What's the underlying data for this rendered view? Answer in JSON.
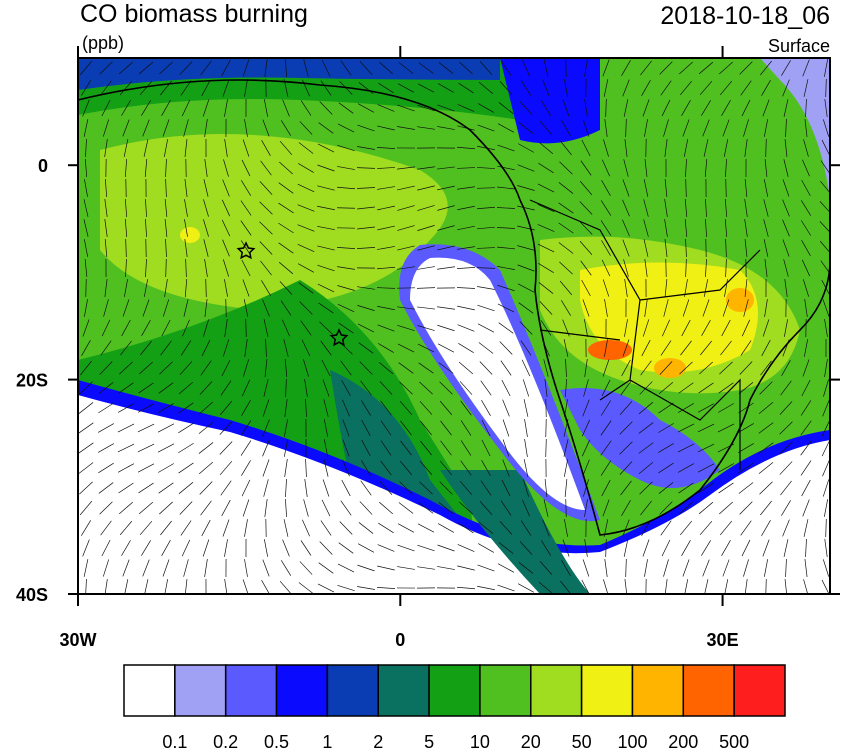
{
  "title": "CO biomass burning",
  "units": "(ppb)",
  "date": "2018-10-18_06",
  "level": "Surface",
  "map": {
    "lon_range": [
      -30,
      40
    ],
    "lat_range": [
      -40,
      10
    ],
    "lat_ticks": [
      {
        "value": 0,
        "label": "0"
      },
      {
        "value": -20,
        "label": "20S"
      },
      {
        "value": -40,
        "label": "40S"
      }
    ],
    "lon_ticks": [
      {
        "value": -30,
        "label": "30W"
      },
      {
        "value": 0,
        "label": "0"
      },
      {
        "value": 30,
        "label": "30E"
      }
    ]
  },
  "colorbar": {
    "levels": [
      0.1,
      0.2,
      0.5,
      1,
      2,
      5,
      10,
      20,
      50,
      100,
      200,
      500
    ],
    "colors": [
      "#ffffff",
      "#a0a0f5",
      "#5a5aff",
      "#0a0aff",
      "#0a3cb4",
      "#0a7060",
      "#14a014",
      "#50c020",
      "#a0dc20",
      "#f0f014",
      "#ffb400",
      "#ff6400",
      "#ff1e1e"
    ]
  }
}
